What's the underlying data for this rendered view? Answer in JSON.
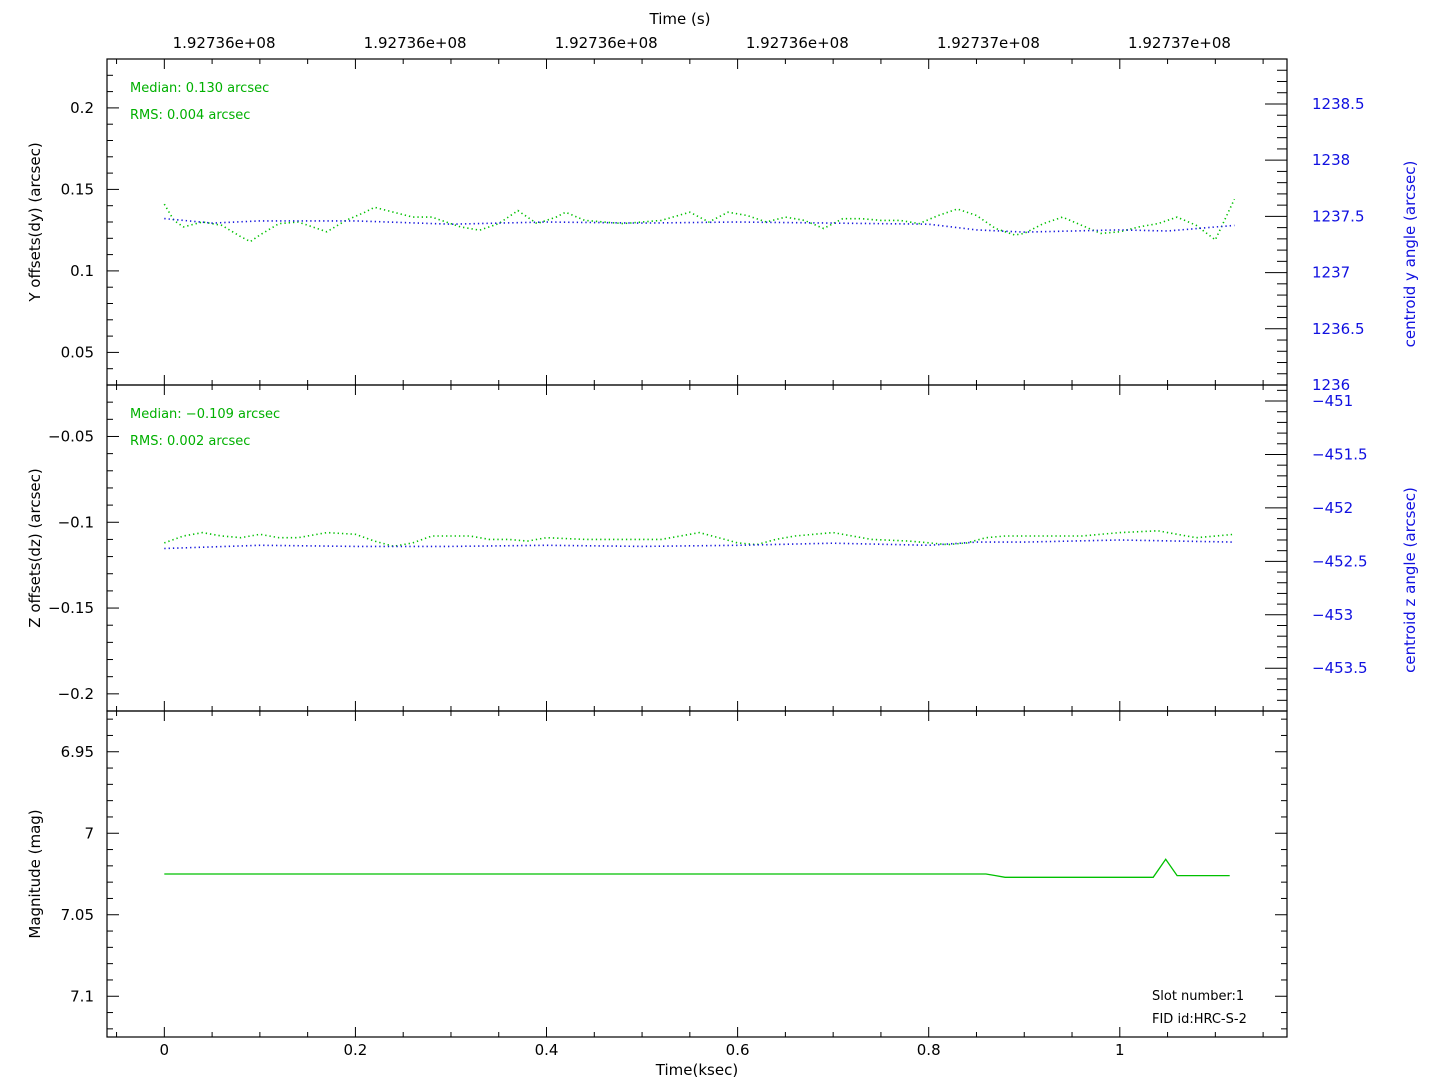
{
  "colors": {
    "green": "#00c000",
    "blue": "#1515dd",
    "axis": "#000000"
  },
  "top_axis": {
    "label": "Time (s)",
    "ticks": [
      {
        "x": 0.0625,
        "label": "1.92736e+08"
      },
      {
        "x": 0.2625,
        "label": "1.92736e+08"
      },
      {
        "x": 0.4625,
        "label": "1.92736e+08"
      },
      {
        "x": 0.6625,
        "label": "1.92736e+08"
      },
      {
        "x": 0.8625,
        "label": "1.92737e+08"
      },
      {
        "x": 1.0625,
        "label": "1.92737e+08"
      }
    ]
  },
  "bottom_axis": {
    "label": "Time(ksec)",
    "xlim": [
      -0.06,
      1.175
    ],
    "ticks": [
      0,
      0.2,
      0.4,
      0.6,
      0.8,
      1
    ],
    "tick_labels": [
      "0",
      "0.2",
      "0.4",
      "0.6",
      "0.8",
      "1"
    ]
  },
  "chart_data": [
    {
      "type": "line",
      "panel": "y",
      "ylabel": "Y offsets(dy) (arcsec)",
      "y2label": "centroid y angle (arcsec)",
      "ylim": [
        0.03,
        0.23
      ],
      "y2lim": [
        1236,
        1238.9
      ],
      "yticks": [
        0.05,
        0.1,
        0.15,
        0.2
      ],
      "ytick_labels": [
        "0.05",
        "0.1",
        "0.15",
        "0.2"
      ],
      "y2ticks": [
        1236,
        1236.5,
        1237,
        1237.5,
        1238,
        1238.5
      ],
      "y2tick_labels": [
        "1236",
        "1236.5",
        "1237",
        "1237.5",
        "1238",
        "1238.5"
      ],
      "annotations": [
        "Median: 0.130 arcsec",
        "RMS: 0.004 arcsec"
      ],
      "series": [
        {
          "axis": "left",
          "style": "dotted",
          "color": "green",
          "x": [
            0,
            0.01,
            0.02,
            0.04,
            0.06,
            0.08,
            0.09,
            0.1,
            0.12,
            0.14,
            0.16,
            0.17,
            0.19,
            0.21,
            0.22,
            0.24,
            0.26,
            0.28,
            0.29,
            0.31,
            0.33,
            0.35,
            0.37,
            0.39,
            0.41,
            0.42,
            0.44,
            0.46,
            0.48,
            0.5,
            0.52,
            0.55,
            0.57,
            0.59,
            0.61,
            0.63,
            0.65,
            0.67,
            0.69,
            0.71,
            0.73,
            0.75,
            0.77,
            0.79,
            0.81,
            0.83,
            0.85,
            0.87,
            0.89,
            0.9,
            0.92,
            0.94,
            0.96,
            0.98,
            1.0,
            1.02,
            1.04,
            1.06,
            1.08,
            1.1,
            1.12
          ],
          "y": [
            0.141,
            0.131,
            0.127,
            0.13,
            0.128,
            0.121,
            0.118,
            0.122,
            0.129,
            0.13,
            0.126,
            0.124,
            0.131,
            0.136,
            0.139,
            0.136,
            0.133,
            0.133,
            0.131,
            0.127,
            0.125,
            0.129,
            0.137,
            0.129,
            0.133,
            0.136,
            0.131,
            0.13,
            0.129,
            0.13,
            0.131,
            0.136,
            0.13,
            0.136,
            0.134,
            0.13,
            0.133,
            0.131,
            0.126,
            0.132,
            0.132,
            0.131,
            0.131,
            0.129,
            0.134,
            0.138,
            0.134,
            0.126,
            0.122,
            0.123,
            0.129,
            0.133,
            0.128,
            0.123,
            0.124,
            0.127,
            0.129,
            0.133,
            0.128,
            0.119,
            0.144
          ]
        },
        {
          "axis": "right",
          "style": "dotted",
          "color": "blue",
          "x": [
            0,
            0.05,
            0.1,
            0.2,
            0.3,
            0.4,
            0.5,
            0.6,
            0.7,
            0.8,
            0.85,
            0.9,
            1.0,
            1.05,
            1.12
          ],
          "y": [
            1237.48,
            1237.44,
            1237.46,
            1237.46,
            1237.43,
            1237.45,
            1237.44,
            1237.45,
            1237.44,
            1237.43,
            1237.38,
            1237.36,
            1237.38,
            1237.37,
            1237.42
          ]
        }
      ]
    },
    {
      "type": "line",
      "panel": "z",
      "ylabel": "Z offsets(dz) (arcsec)",
      "y2label": "centroid z angle (arcsec)",
      "ylim": [
        -0.21,
        -0.02
      ],
      "y2lim": [
        -453.9,
        -450.85
      ],
      "yticks": [
        -0.2,
        -0.15,
        -0.1,
        -0.05
      ],
      "ytick_labels": [
        "−0.2",
        "−0.15",
        "−0.1",
        "−0.05"
      ],
      "y2ticks": [
        -453.5,
        -453,
        -452.5,
        -452,
        -451.5,
        -451
      ],
      "y2tick_labels": [
        "−453.5",
        "−453",
        "−452.5",
        "−452",
        "−451.5",
        "−451"
      ],
      "annotations": [
        "Median: −0.109 arcsec",
        "RMS: 0.002 arcsec"
      ],
      "series": [
        {
          "axis": "left",
          "style": "dotted",
          "color": "green",
          "x": [
            0,
            0.02,
            0.04,
            0.06,
            0.08,
            0.1,
            0.12,
            0.14,
            0.17,
            0.2,
            0.22,
            0.24,
            0.26,
            0.28,
            0.3,
            0.32,
            0.34,
            0.36,
            0.38,
            0.4,
            0.44,
            0.48,
            0.52,
            0.56,
            0.58,
            0.6,
            0.62,
            0.64,
            0.66,
            0.7,
            0.74,
            0.78,
            0.82,
            0.84,
            0.86,
            0.88,
            0.92,
            0.96,
            1.0,
            1.04,
            1.06,
            1.08,
            1.12
          ],
          "y": [
            -0.112,
            -0.108,
            -0.106,
            -0.108,
            -0.109,
            -0.107,
            -0.109,
            -0.109,
            -0.106,
            -0.107,
            -0.111,
            -0.114,
            -0.112,
            -0.108,
            -0.108,
            -0.108,
            -0.11,
            -0.11,
            -0.111,
            -0.109,
            -0.11,
            -0.11,
            -0.11,
            -0.106,
            -0.109,
            -0.112,
            -0.113,
            -0.11,
            -0.108,
            -0.106,
            -0.11,
            -0.111,
            -0.113,
            -0.112,
            -0.109,
            -0.108,
            -0.108,
            -0.108,
            -0.106,
            -0.105,
            -0.107,
            -0.109,
            -0.107
          ]
        },
        {
          "axis": "right",
          "style": "dotted",
          "color": "blue",
          "x": [
            0,
            0.1,
            0.2,
            0.3,
            0.4,
            0.5,
            0.6,
            0.7,
            0.8,
            0.85,
            0.9,
            1.0,
            1.12
          ],
          "y": [
            -452.38,
            -452.35,
            -452.36,
            -452.36,
            -452.35,
            -452.36,
            -452.35,
            -452.33,
            -452.35,
            -452.32,
            -452.32,
            -452.3,
            -452.32
          ]
        }
      ]
    },
    {
      "type": "line",
      "panel": "mag",
      "ylabel": "Magnitude (mag)",
      "ylim": [
        7.125,
        6.925
      ],
      "yticks": [
        6.95,
        7,
        7.05,
        7.1
      ],
      "ytick_labels": [
        "6.95",
        "7",
        "7.05",
        "7.1"
      ],
      "annotations": [
        "Slot number:1",
        "FID id:HRC-S-2"
      ],
      "series": [
        {
          "axis": "left",
          "style": "solid",
          "color": "green",
          "x": [
            0,
            0.86,
            0.87,
            0.88,
            0.9,
            1.0,
            1.035,
            1.048,
            1.06,
            1.08,
            1.115
          ],
          "y": [
            7.025,
            7.025,
            7.026,
            7.027,
            7.027,
            7.027,
            7.027,
            7.016,
            7.026,
            7.026,
            7.026
          ]
        }
      ]
    }
  ]
}
